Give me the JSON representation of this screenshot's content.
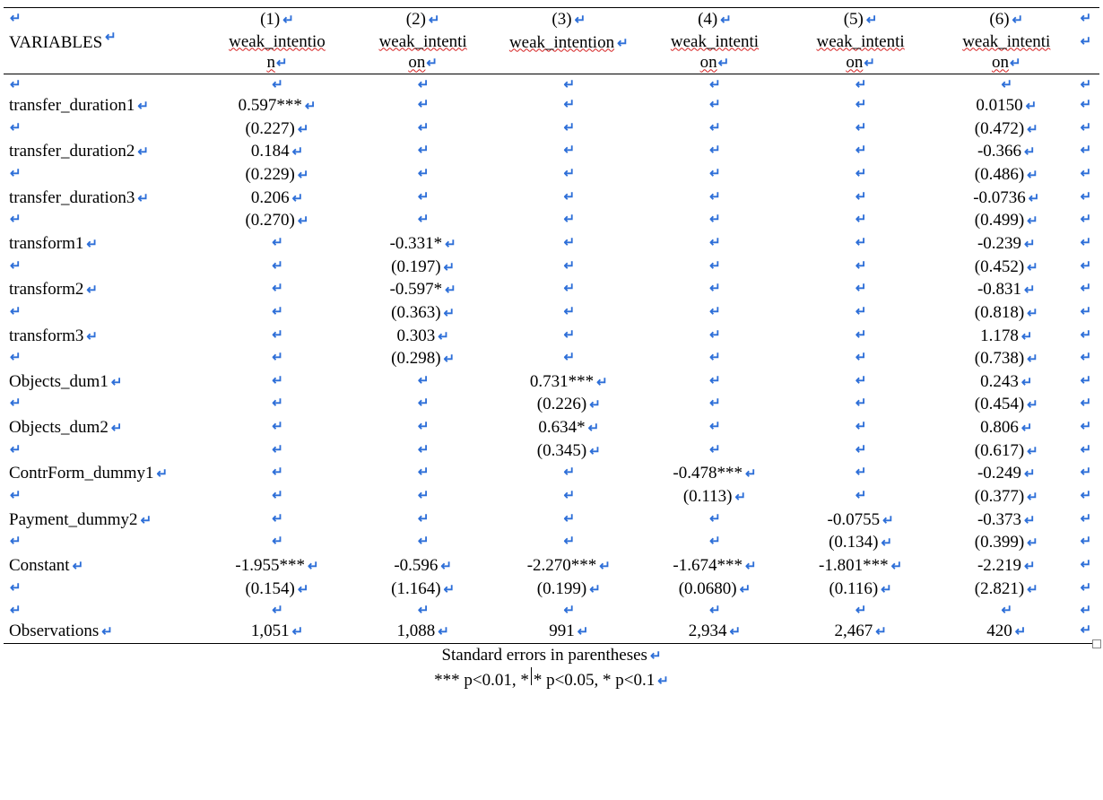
{
  "header": {
    "var_label": "VARIABLES",
    "columns": [
      "(1)",
      "(2)",
      "(3)",
      "(4)",
      "(5)",
      "(6)"
    ],
    "dep_prefix": "weak_intenti",
    "dep_line2_a": "o",
    "dep_line2_b": "n",
    "dep_line2_full": "on",
    "dep_line2_col3": "weak_intention"
  },
  "rows": [
    {
      "label": "transfer_duration1",
      "coef": [
        "0.597***",
        "",
        "",
        "",
        "",
        "0.0150"
      ],
      "se": [
        "(0.227)",
        "",
        "",
        "",
        "",
        "(0.472)"
      ]
    },
    {
      "label": "transfer_duration2",
      "coef": [
        "0.184",
        "",
        "",
        "",
        "",
        "-0.366"
      ],
      "se": [
        "(0.229)",
        "",
        "",
        "",
        "",
        "(0.486)"
      ]
    },
    {
      "label": "transfer_duration3",
      "coef": [
        "0.206",
        "",
        "",
        "",
        "",
        "-0.0736"
      ],
      "se": [
        "(0.270)",
        "",
        "",
        "",
        "",
        "(0.499)"
      ]
    },
    {
      "label": "transform1",
      "coef": [
        "",
        "-0.331*",
        "",
        "",
        "",
        "-0.239"
      ],
      "se": [
        "",
        "(0.197)",
        "",
        "",
        "",
        "(0.452)"
      ]
    },
    {
      "label": "transform2",
      "coef": [
        "",
        "-0.597*",
        "",
        "",
        "",
        "-0.831"
      ],
      "se": [
        "",
        "(0.363)",
        "",
        "",
        "",
        "(0.818)"
      ]
    },
    {
      "label": "transform3",
      "coef": [
        "",
        "0.303",
        "",
        "",
        "",
        "1.178"
      ],
      "se": [
        "",
        "(0.298)",
        "",
        "",
        "",
        "(0.738)"
      ]
    },
    {
      "label": "Objects_dum1",
      "coef": [
        "",
        "",
        "0.731***",
        "",
        "",
        "0.243"
      ],
      "se": [
        "",
        "",
        "(0.226)",
        "",
        "",
        "(0.454)"
      ]
    },
    {
      "label": "Objects_dum2",
      "coef": [
        "",
        "",
        "0.634*",
        "",
        "",
        "0.806"
      ],
      "se": [
        "",
        "",
        "(0.345)",
        "",
        "",
        "(0.617)"
      ]
    },
    {
      "label": "ContrForm_dummy1",
      "coef": [
        "",
        "",
        "",
        "-0.478***",
        "",
        "-0.249"
      ],
      "se": [
        "",
        "",
        "",
        "(0.113)",
        "",
        "(0.377)"
      ]
    },
    {
      "label": "Payment_dummy2",
      "coef": [
        "",
        "",
        "",
        "",
        "-0.0755",
        "-0.373"
      ],
      "se": [
        "",
        "",
        "",
        "",
        "(0.134)",
        "(0.399)"
      ]
    },
    {
      "label": "Constant",
      "coef": [
        "-1.955***",
        "-0.596",
        "-2.270***",
        "-1.674***",
        "-1.801***",
        "-2.219"
      ],
      "se": [
        "(0.154)",
        "(1.164)",
        "(0.199)",
        "(0.0680)",
        "(0.116)",
        "(2.821)"
      ]
    }
  ],
  "obs": {
    "label": "Observations",
    "vals": [
      "1,051",
      "1,088",
      "991",
      "2,934",
      "2,467",
      "420"
    ]
  },
  "footnotes": {
    "se": "Standard errors in parentheses",
    "sig_a": "*** p<0.01, *",
    "sig_b": "* p<0.05, * p<0.1"
  },
  "glyph": "↵"
}
